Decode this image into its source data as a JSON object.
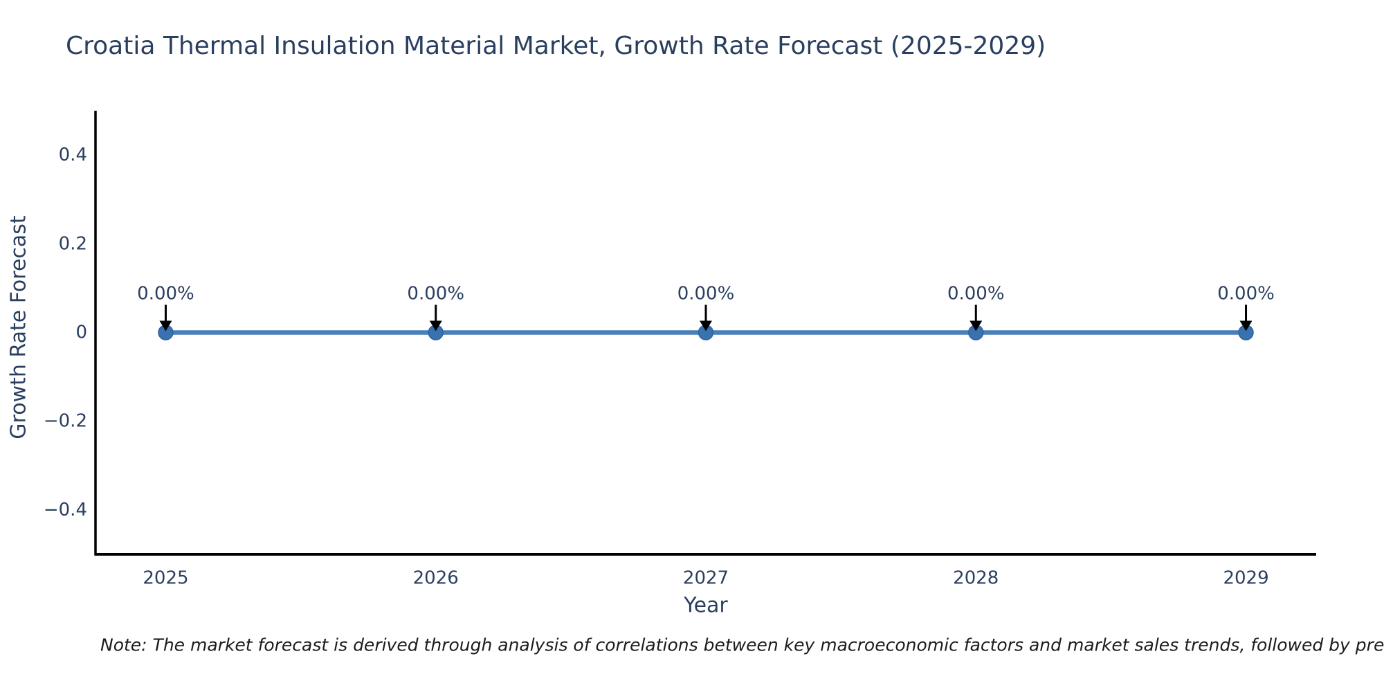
{
  "chart_data": {
    "type": "line",
    "title": "Croatia Thermal Insulation Material Market, Growth Rate Forecast (2025-2029)",
    "xlabel": "Year",
    "ylabel": "Growth Rate Forecast",
    "x": [
      2025,
      2026,
      2027,
      2028,
      2029
    ],
    "series": [
      {
        "name": "Growth Rate Forecast",
        "values": [
          0,
          0,
          0,
          0,
          0
        ]
      }
    ],
    "point_labels": [
      "0.00%",
      "0.00%",
      "0.00%",
      "0.00%",
      "0.00%"
    ],
    "xtick_labels": [
      "2025",
      "2026",
      "2027",
      "2028",
      "2029"
    ],
    "ytick_values": [
      0.4,
      0.2,
      0,
      -0.2,
      -0.4
    ],
    "ytick_labels": [
      "0.4",
      "0.2",
      "0",
      "−0.2",
      "−0.4"
    ],
    "xlim": [
      2024.74,
      2029.26
    ],
    "ylim": [
      -0.5,
      0.5
    ],
    "grid": false,
    "legend": false,
    "colors": {
      "line": "#4a80b8",
      "marker": "#3a72b0",
      "marker_edge": "#2f639f",
      "axis": "#000000",
      "tick_text": "#2a3f5f",
      "annotation_text": "#2a3f5f",
      "annotation_arrow": "#000000",
      "background": "#ffffff"
    }
  },
  "note": "Note: The market forecast is derived through analysis of correlations between key macroeconomic factors and market sales trends, followed by predictive modeling to project future sales"
}
